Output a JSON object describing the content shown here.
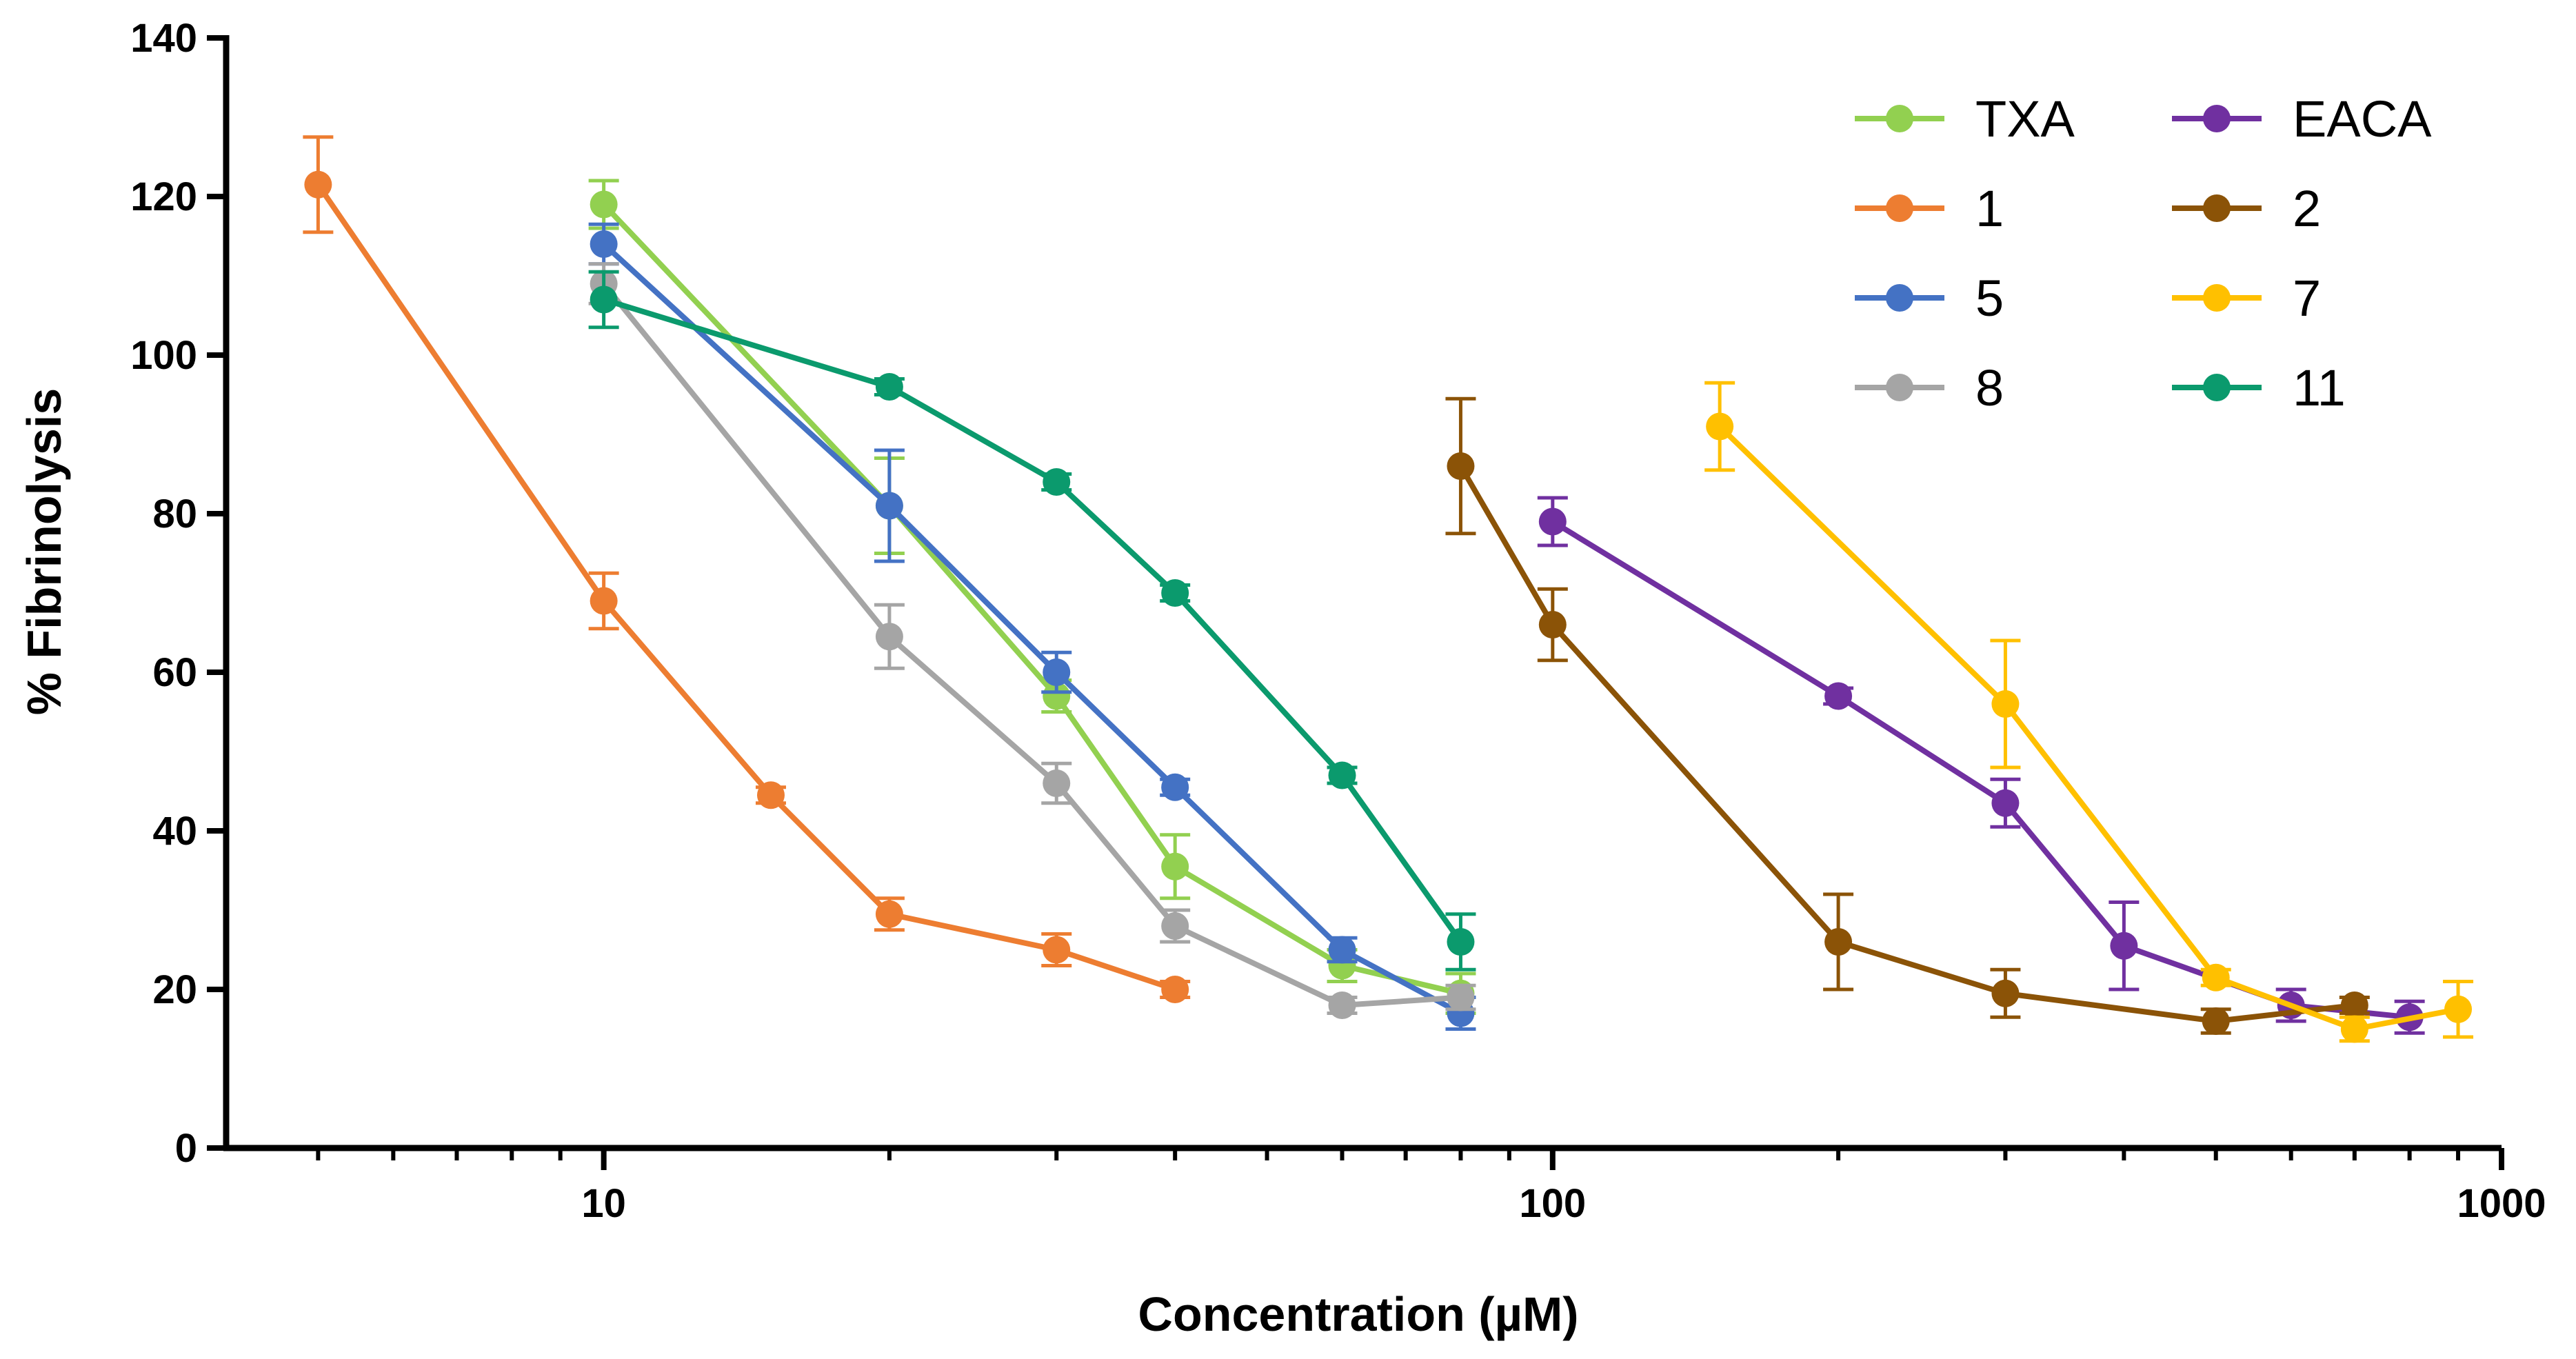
{
  "chart_data": {
    "type": "line",
    "title": "",
    "xlabel": "Concentration (µM)",
    "ylabel": "% Fibrinolysis",
    "xscale": "log",
    "xlim": [
      4,
      1000
    ],
    "ylim": [
      0,
      140
    ],
    "x_ticks": [
      10,
      100,
      1000
    ],
    "x_tick_labels": [
      "10",
      "100",
      "1000"
    ],
    "y_ticks": [
      0,
      20,
      40,
      60,
      80,
      100,
      120,
      140
    ],
    "y_tick_labels": [
      "0",
      "20",
      "40",
      "60",
      "80",
      "100",
      "120",
      "140"
    ],
    "grid": false,
    "legend_position": "top-right",
    "series": [
      {
        "name": "TXA",
        "color": "#92D050",
        "x": [
          10,
          20,
          30,
          40,
          60,
          80
        ],
        "y": [
          119,
          81,
          57,
          35.5,
          23,
          19.5
        ],
        "err": [
          3,
          6,
          2,
          4,
          2,
          2.5
        ]
      },
      {
        "name": "1",
        "color": "#ED7D31",
        "x": [
          5,
          10,
          15,
          20,
          30,
          40
        ],
        "y": [
          121.5,
          69,
          44.5,
          29.5,
          25,
          20
        ],
        "err": [
          6,
          3.5,
          1,
          2,
          2,
          1
        ]
      },
      {
        "name": "5",
        "color": "#4472C4",
        "x": [
          10,
          20,
          30,
          40,
          60,
          80
        ],
        "y": [
          114,
          81,
          60,
          45.5,
          25,
          17
        ],
        "err": [
          2.5,
          7,
          2.5,
          1,
          1.5,
          2
        ]
      },
      {
        "name": "8",
        "color": "#A5A5A5",
        "x": [
          10,
          20,
          30,
          40,
          60,
          80
        ],
        "y": [
          109,
          64.5,
          46,
          28,
          18,
          19
        ],
        "err": [
          2.5,
          4,
          2.5,
          2,
          1,
          1.5
        ]
      },
      {
        "name": "EACA",
        "color": "#7030A0",
        "x": [
          100,
          200,
          300,
          400,
          600,
          800
        ],
        "y": [
          79,
          57,
          43.5,
          25.5,
          18,
          16.5
        ],
        "err": [
          3,
          1,
          3,
          5.5,
          2,
          2
        ]
      },
      {
        "name": "2",
        "color": "#8B5307",
        "x": [
          80,
          100,
          200,
          300,
          500,
          700
        ],
        "y": [
          86,
          66,
          26,
          19.5,
          16,
          18
        ],
        "err": [
          8.5,
          4.5,
          6,
          3,
          1.5,
          1
        ]
      },
      {
        "name": "7",
        "color": "#FFC000",
        "x": [
          150,
          300,
          500,
          700,
          900
        ],
        "y": [
          91,
          56,
          21.5,
          15,
          17.5
        ],
        "err": [
          5.5,
          8,
          1,
          1.5,
          3.5
        ]
      },
      {
        "name": "11",
        "color": "#0B9A6D",
        "x": [
          10,
          20,
          30,
          40,
          60,
          80
        ],
        "y": [
          107,
          96,
          84,
          70,
          47,
          26
        ],
        "err": [
          3.5,
          1,
          1,
          1,
          1,
          3.5
        ]
      }
    ]
  }
}
